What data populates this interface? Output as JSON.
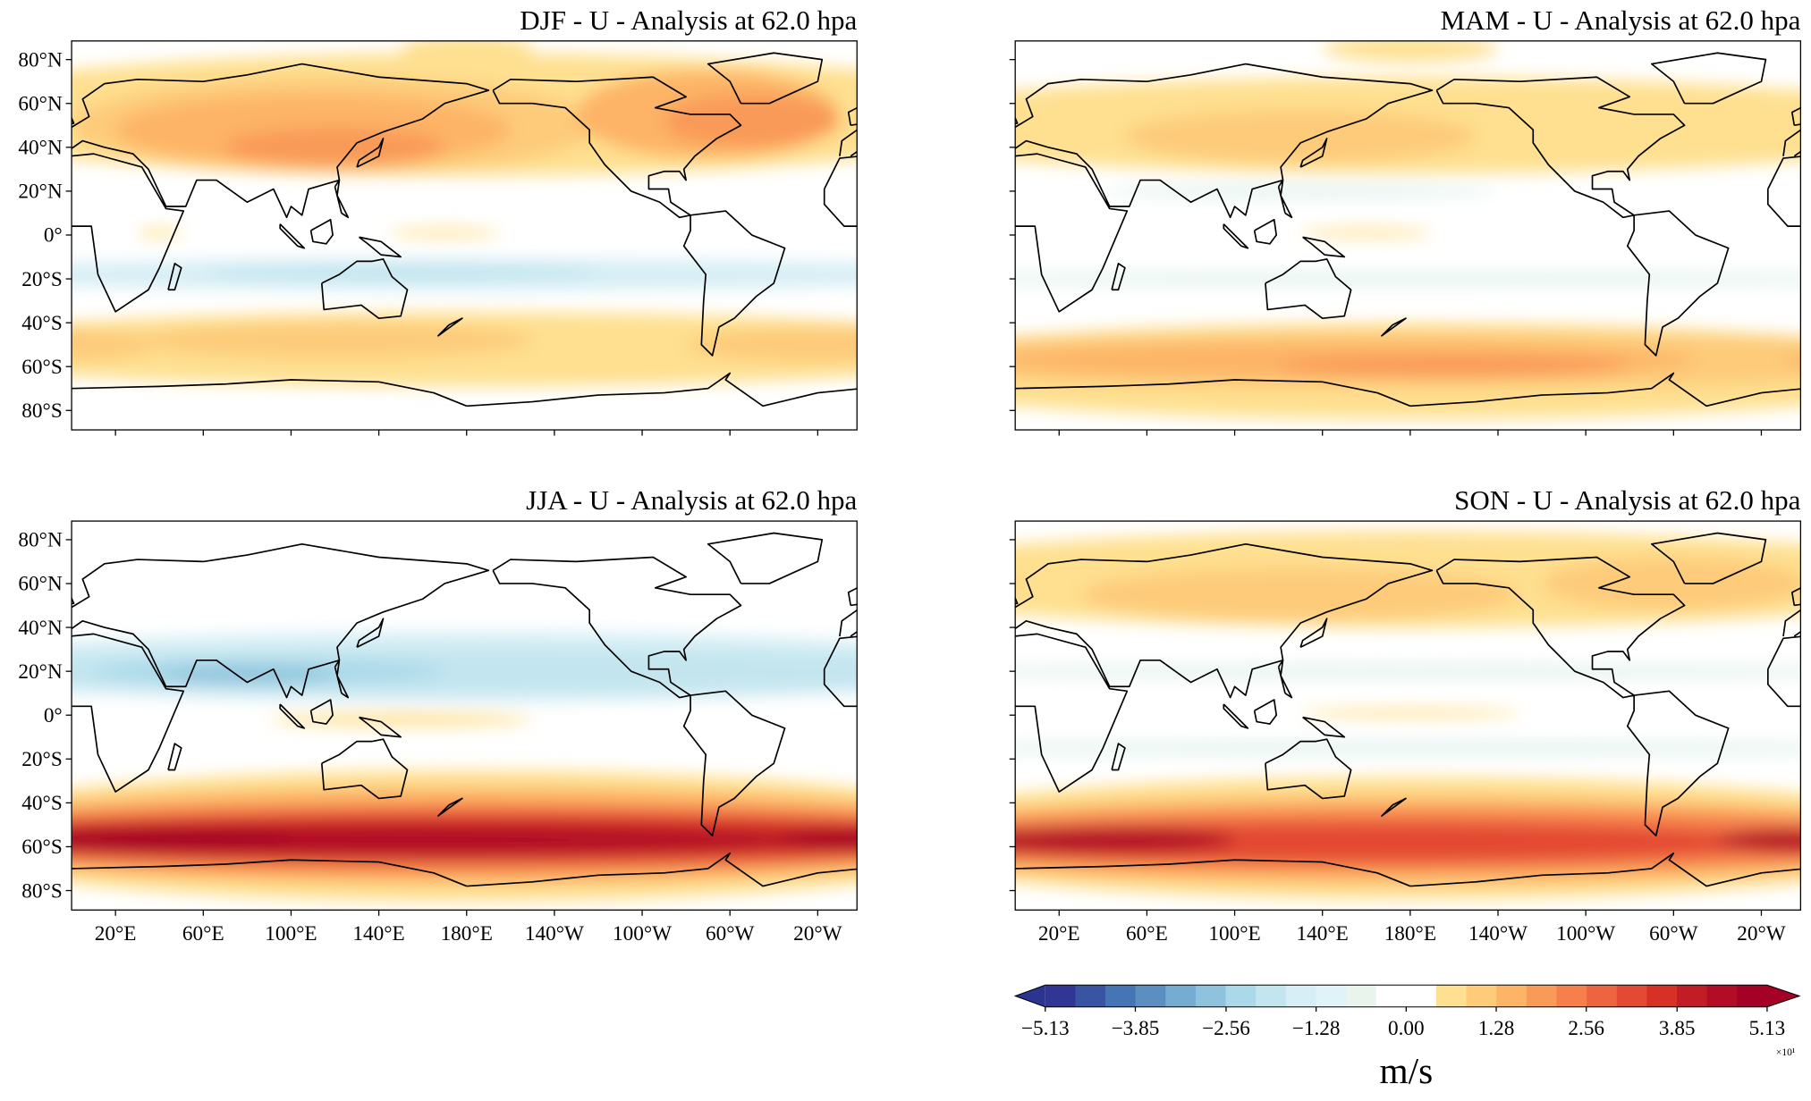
{
  "panels": [
    {
      "title": "DJF - U - Analysis at 62.0 hpa"
    },
    {
      "title": "MAM - U - Analysis at 62.0 hpa"
    },
    {
      "title": "JJA - U - Analysis at 62.0 hpa"
    },
    {
      "title": "SON - U - Analysis at 62.0 hpa"
    }
  ],
  "lat_ticks": [
    {
      "value": 80,
      "label": "80°N"
    },
    {
      "value": 60,
      "label": "60°N"
    },
    {
      "value": 40,
      "label": "40°N"
    },
    {
      "value": 20,
      "label": "20°N"
    },
    {
      "value": 0,
      "label": "0°"
    },
    {
      "value": -20,
      "label": "20°S"
    },
    {
      "value": -40,
      "label": "40°S"
    },
    {
      "value": -60,
      "label": "60°S"
    },
    {
      "value": -80,
      "label": "80°S"
    }
  ],
  "lon_ticks": [
    {
      "value": 20,
      "label": "20°E"
    },
    {
      "value": 60,
      "label": "60°E"
    },
    {
      "value": 100,
      "label": "100°E"
    },
    {
      "value": 140,
      "label": "140°E"
    },
    {
      "value": 180,
      "label": "180°E"
    },
    {
      "value": 220,
      "label": "140°W"
    },
    {
      "value": 260,
      "label": "100°W"
    },
    {
      "value": 300,
      "label": "60°W"
    },
    {
      "value": 340,
      "label": "20°W"
    }
  ],
  "colorbar": {
    "lim": [
      -5.13,
      5.13
    ],
    "ticks": [
      {
        "value": -5.13,
        "label": "−5.13"
      },
      {
        "value": -3.85,
        "label": "−3.85"
      },
      {
        "value": -2.56,
        "label": "−2.56"
      },
      {
        "value": -1.28,
        "label": "−1.28"
      },
      {
        "value": 0,
        "label": "0.00"
      },
      1.28,
      2.56,
      3.85,
      5.13
    ],
    "label": "m/s",
    "exponent": "×10¹",
    "colors": [
      "#313695",
      "#3a54a4",
      "#4575b4",
      "#5b8ec1",
      "#74add1",
      "#8fc3dd",
      "#abd9e9",
      "#c3e5ef",
      "#d6eef5",
      "#e0f3f8",
      "#e8f4ec",
      "#ffffff",
      "#ffffff",
      "#fee090",
      "#fdcb7a",
      "#fdb466",
      "#f99a58",
      "#f67f4b",
      "#ee6440",
      "#e34933",
      "#d73027",
      "#c21c27",
      "#b20c26",
      "#a50026"
    ],
    "extend_colors": [
      "#2b3590",
      "#a50026"
    ]
  }
}
